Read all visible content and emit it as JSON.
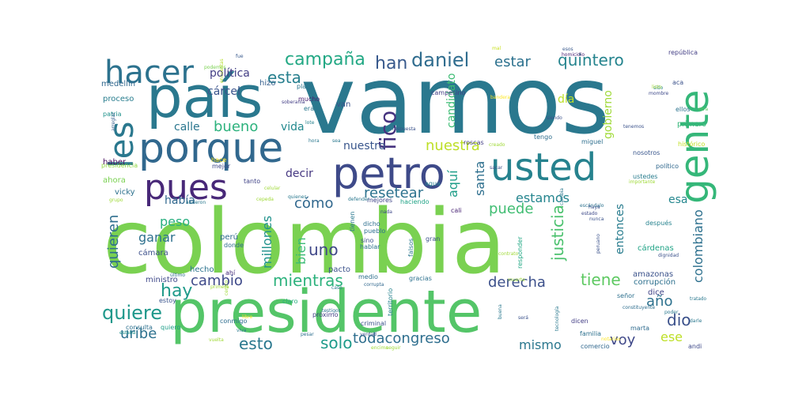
{
  "words": [
    {
      "text": "vamos",
      "color": "#2a788e"
    },
    {
      "text": "colombia",
      "color": "#7ad151"
    },
    {
      "text": "presidente",
      "color": "#54c568"
    },
    {
      "text": "país",
      "color": "#2a788e"
    },
    {
      "text": "porque",
      "color": "#31688e"
    },
    {
      "text": "hacer",
      "color": "#2c728e"
    },
    {
      "text": "les",
      "color": "#2a788e"
    },
    {
      "text": "pues",
      "color": "#482878"
    },
    {
      "text": "petro",
      "color": "#3e4a89"
    },
    {
      "text": "usted",
      "color": "#26828e"
    },
    {
      "text": "gente",
      "color": "#35b779"
    },
    {
      "text": "campaña",
      "color": "#22a884"
    },
    {
      "text": "daniel",
      "color": "#2f6c8e"
    },
    {
      "text": "han",
      "color": "#38598c"
    },
    {
      "text": "quintero",
      "color": "#25848e"
    },
    {
      "text": "estar",
      "color": "#2c718e"
    },
    {
      "text": "esta",
      "color": "#277f8e"
    },
    {
      "text": "política",
      "color": "#433e85"
    },
    {
      "text": "cárcel",
      "color": "#3a548c"
    },
    {
      "text": "bueno",
      "color": "#2db27d"
    },
    {
      "text": "calle",
      "color": "#2a768e"
    },
    {
      "text": "vida",
      "color": "#23898e"
    },
    {
      "text": "fico",
      "color": "#46337f"
    },
    {
      "text": "nuestra",
      "color": "#bddf26"
    },
    {
      "text": "santa",
      "color": "#2e6f8e"
    },
    {
      "text": "nuestro",
      "color": "#39568c"
    },
    {
      "text": "resetear",
      "color": "#2c728e"
    },
    {
      "text": "cómo",
      "color": "#31688e"
    },
    {
      "text": "puede",
      "color": "#40bd72"
    },
    {
      "text": "aquí",
      "color": "#1f9e89"
    },
    {
      "text": "estamos",
      "color": "#25858e"
    },
    {
      "text": "decir",
      "color": "#453781"
    },
    {
      "text": "había",
      "color": "#31688e"
    },
    {
      "text": "peso",
      "color": "#29af7f"
    },
    {
      "text": "ganar",
      "color": "#2d708e"
    },
    {
      "text": "millones",
      "color": "#20928c"
    },
    {
      "text": "bien",
      "color": "#3bbb75"
    },
    {
      "text": "uno",
      "color": "#3f4788"
    },
    {
      "text": "quieren",
      "color": "#2e6e8e"
    },
    {
      "text": "justicia",
      "color": "#4ac16d"
    },
    {
      "text": "colombiano",
      "color": "#2d708e"
    },
    {
      "text": "esa",
      "color": "#24878e"
    },
    {
      "text": "hay",
      "color": "#1f9a8a"
    },
    {
      "text": "cambio",
      "color": "#3e4989"
    },
    {
      "text": "mientras",
      "color": "#2db27d"
    },
    {
      "text": "derecha",
      "color": "#3c508b"
    },
    {
      "text": "tiene",
      "color": "#5ec962"
    },
    {
      "text": "año",
      "color": "#2d718e"
    },
    {
      "text": "quiere",
      "color": "#1f988b"
    },
    {
      "text": "dio",
      "color": "#3b518b"
    },
    {
      "text": "uribe",
      "color": "#2d718e"
    },
    {
      "text": "esto",
      "color": "#2a788e"
    },
    {
      "text": "solo",
      "color": "#1e9b8a"
    },
    {
      "text": "todacongreso",
      "color": "#2e6e8e"
    },
    {
      "text": "mismo",
      "color": "#2a778e"
    },
    {
      "text": "voy",
      "color": "#3f4889"
    },
    {
      "text": "ese",
      "color": "#bddf26"
    },
    {
      "text": "entonces",
      "color": "#287c8e"
    },
    {
      "text": "candidato",
      "color": "#3dbc74"
    },
    {
      "text": "gobierno",
      "color": "#a0da39"
    },
    {
      "text": "día",
      "color": "#bddf26"
    },
    {
      "text": "medellín",
      "color": "#31688e"
    },
    {
      "text": "proceso",
      "color": "#287d8e"
    },
    {
      "text": "patria",
      "color": "#20928c"
    },
    {
      "text": "presidencia",
      "color": "#90d743"
    },
    {
      "text": "hizo",
      "color": "#355f8d"
    },
    {
      "text": "van",
      "color": "#3b528b"
    },
    {
      "text": "mucho",
      "color": "#481f70"
    },
    {
      "text": "plata",
      "color": "#2a768e"
    },
    {
      "text": "era",
      "color": "#2a778e"
    },
    {
      "text": "campesino",
      "color": "#433e85"
    },
    {
      "text": "tengo",
      "color": "#2e6e8e"
    },
    {
      "text": "miguel",
      "color": "#2e6f8e"
    },
    {
      "text": "roscas",
      "color": "#433e85"
    },
    {
      "text": "homicidio",
      "color": "#482173"
    },
    {
      "text": "república",
      "color": "#433e85"
    },
    {
      "text": "sido",
      "color": "#27808e"
    },
    {
      "text": "ellos",
      "color": "#2c738e"
    },
    {
      "text": "primero",
      "color": "#35b779"
    },
    {
      "text": "histórico",
      "color": "#c2df23"
    },
    {
      "text": "político",
      "color": "#31688e"
    },
    {
      "text": "nosotros",
      "color": "#39568c"
    },
    {
      "text": "ustedes",
      "color": "#287c8e"
    },
    {
      "text": "haber",
      "color": "#460b5e"
    },
    {
      "text": "ahora",
      "color": "#7ad151"
    },
    {
      "text": "vicky",
      "color": "#2d718e"
    },
    {
      "text": "tanto",
      "color": "#414487"
    },
    {
      "text": "mejor",
      "color": "#3e4989"
    },
    {
      "text": "hace",
      "color": "#fde725"
    },
    {
      "text": "cali",
      "color": "#482374"
    },
    {
      "text": "agua",
      "color": "#277f8e"
    },
    {
      "text": "haciendo",
      "color": "#20a386"
    },
    {
      "text": "mejores",
      "color": "#404588"
    },
    {
      "text": "perú",
      "color": "#2f6b8e"
    },
    {
      "text": "cámara",
      "color": "#3c4f8a"
    },
    {
      "text": "donde",
      "color": "#2e6d8e"
    },
    {
      "text": "hecho",
      "color": "#2c738e"
    },
    {
      "text": "ahí",
      "color": "#472d7b"
    },
    {
      "text": "ministro",
      "color": "#3f4889"
    },
    {
      "text": "estoy",
      "color": "#3a548c"
    },
    {
      "text": "quiero",
      "color": "#1f9e89"
    },
    {
      "text": "consulta",
      "color": "#2d708e"
    },
    {
      "text": "estaba",
      "color": "#21918c"
    },
    {
      "text": "conmigo",
      "color": "#2e6d8e"
    },
    {
      "text": "claro",
      "color": "#29af7f"
    },
    {
      "text": "pacto",
      "color": "#3b528b"
    },
    {
      "text": "medio",
      "color": "#2e6f8e"
    },
    {
      "text": "gracias",
      "color": "#2d718e"
    },
    {
      "text": "próximo",
      "color": "#433e85"
    },
    {
      "text": "criminal",
      "color": "#3b528b"
    },
    {
      "text": "territorio",
      "color": "#26828e"
    },
    {
      "text": "testigos",
      "color": "#2d708e"
    },
    {
      "text": "hablar",
      "color": "#2c728e"
    },
    {
      "text": "dicho",
      "color": "#2e6f8e"
    },
    {
      "text": "pueblo",
      "color": "#2d718e"
    },
    {
      "text": "sino",
      "color": "#3b528b"
    },
    {
      "text": "gran",
      "color": "#3b528b"
    },
    {
      "text": "falsos",
      "color": "#2a778e"
    },
    {
      "text": "tienen",
      "color": "#2a788e"
    },
    {
      "text": "nada",
      "color": "#3e4989"
    },
    {
      "text": "responder",
      "color": "#22a884"
    },
    {
      "text": "corrupción",
      "color": "#2d708e"
    },
    {
      "text": "dice",
      "color": "#414487"
    },
    {
      "text": "amazonas",
      "color": "#3b528b"
    },
    {
      "text": "cárdenas",
      "color": "#20a386"
    },
    {
      "text": "después",
      "color": "#26828e"
    },
    {
      "text": "estado",
      "color": "#3e4989"
    },
    {
      "text": "escándalo",
      "color": "#2c728e"
    },
    {
      "text": "señor",
      "color": "#2d708e"
    },
    {
      "text": "constituyente",
      "color": "#2e6e8e"
    },
    {
      "text": "marta",
      "color": "#2f6b8e"
    },
    {
      "text": "andi",
      "color": "#3e4989"
    },
    {
      "text": "comercio",
      "color": "#31688e"
    },
    {
      "text": "familia",
      "color": "#2d718e"
    },
    {
      "text": "verdad",
      "color": "#3b528b"
    },
    {
      "text": "pesar",
      "color": "#2e6f8e"
    },
    {
      "text": "dicen",
      "color": "#433e85"
    },
    {
      "text": "será",
      "color": "#3b528b"
    },
    {
      "text": "tecnología",
      "color": "#2a788e"
    },
    {
      "text": "aca",
      "color": "#3b528b"
    },
    {
      "text": "otra",
      "color": "#5ec962"
    },
    {
      "text": "esos",
      "color": "#38598c"
    },
    {
      "text": "mal",
      "color": "#c8e020"
    },
    {
      "text": "fue",
      "color": "#38598c"
    },
    {
      "text": "podemos",
      "color": "#7ad151"
    },
    {
      "text": "arreglar",
      "color": "#355f8d"
    },
    {
      "text": "encuestas",
      "color": "#b5de2b"
    },
    {
      "text": "soberanía",
      "color": "#433e85"
    },
    {
      "text": "lote",
      "color": "#26828e"
    },
    {
      "text": "respuesta",
      "color": "#3b528b"
    },
    {
      "text": "siendo",
      "color": "#3b528b"
    },
    {
      "text": "mombre",
      "color": "#3e4989"
    },
    {
      "text": "tenemos",
      "color": "#3b528b"
    },
    {
      "text": "listo",
      "color": "#a0da39"
    },
    {
      "text": "importante",
      "color": "#a0da39"
    },
    {
      "text": "sacar",
      "color": "#3b528b"
    },
    {
      "text": "haya",
      "color": "#3b528b"
    },
    {
      "text": "nunca",
      "color": "#3b528b"
    },
    {
      "text": "peruano",
      "color": "#3b528b"
    },
    {
      "text": "dignidad",
      "color": "#3b528b"
    },
    {
      "text": "último",
      "color": "#2e6e8e"
    },
    {
      "text": "caso",
      "color": "#2a788e"
    },
    {
      "text": "corrupta",
      "color": "#31688e"
    },
    {
      "text": "encima",
      "color": "#a0da39"
    },
    {
      "text": "seguir",
      "color": "#a0da39"
    },
    {
      "text": "vuelta",
      "color": "#a0da39"
    },
    {
      "text": "notarias",
      "color": "#fde725"
    },
    {
      "text": "tratado",
      "color": "#2a788e"
    },
    {
      "text": "poder",
      "color": "#2a788e"
    },
    {
      "text": "darle",
      "color": "#2a788e"
    },
    {
      "text": "celular",
      "color": "#a0da39"
    },
    {
      "text": "defender",
      "color": "#2a788e"
    },
    {
      "text": "quienes",
      "color": "#2a788e"
    },
    {
      "text": "cepeda",
      "color": "#a0da39"
    },
    {
      "text": "abrieron",
      "color": "#2a788e"
    },
    {
      "text": "grupo",
      "color": "#a0da39"
    },
    {
      "text": "hora",
      "color": "#2a788e"
    },
    {
      "text": "sea",
      "color": "#2a788e"
    },
    {
      "text": "viva",
      "color": "#2a788e"
    },
    {
      "text": "bandera",
      "color": "#fde725"
    },
    {
      "text": "contrato",
      "color": "#a0da39"
    },
    {
      "text": "cambia",
      "color": "#2a788e"
    },
    {
      "text": "muerte",
      "color": "#a0da39"
    },
    {
      "text": "buena",
      "color": "#2a788e"
    },
    {
      "text": "centro",
      "color": "#a0da39"
    },
    {
      "text": "primera",
      "color": "#a0da39"
    },
    {
      "text": "libre",
      "color": "#fde725"
    },
    {
      "text": "creado",
      "color": "#a0da39"
    },
    {
      "text": "presidencias",
      "color": "#2a788e"
    }
  ]
}
